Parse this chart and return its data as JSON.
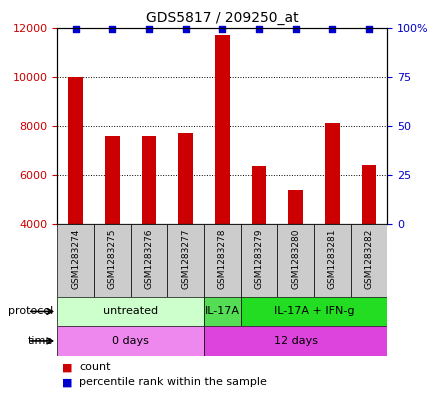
{
  "title": "GDS5817 / 209250_at",
  "samples": [
    "GSM1283274",
    "GSM1283275",
    "GSM1283276",
    "GSM1283277",
    "GSM1283278",
    "GSM1283279",
    "GSM1283280",
    "GSM1283281",
    "GSM1283282"
  ],
  "counts": [
    10000,
    7600,
    7600,
    7700,
    11700,
    6350,
    5400,
    8100,
    6400
  ],
  "percentile_ranks": [
    99,
    99,
    99,
    99,
    99,
    99,
    99,
    99,
    99
  ],
  "ymin": 4000,
  "ymax": 12000,
  "yticks_left": [
    4000,
    6000,
    8000,
    10000,
    12000
  ],
  "yticks_right": [
    0,
    25,
    50,
    75,
    100
  ],
  "bar_color": "#cc0000",
  "dot_color": "#0000cc",
  "protocol_groups": [
    {
      "label": "untreated",
      "start": 0,
      "end": 4,
      "color": "#ccffcc"
    },
    {
      "label": "IL-17A",
      "start": 4,
      "end": 5,
      "color": "#55dd55"
    },
    {
      "label": "IL-17A + IFN-g",
      "start": 5,
      "end": 9,
      "color": "#22dd22"
    }
  ],
  "time_groups": [
    {
      "label": "0 days",
      "start": 0,
      "end": 4,
      "color": "#ee88ee"
    },
    {
      "label": "12 days",
      "start": 4,
      "end": 9,
      "color": "#dd44dd"
    }
  ],
  "sample_box_color": "#cccccc",
  "left_tick_color": "#cc0000",
  "right_tick_color": "#0000cc",
  "grid_linestyle": "dotted",
  "bar_width": 0.4
}
